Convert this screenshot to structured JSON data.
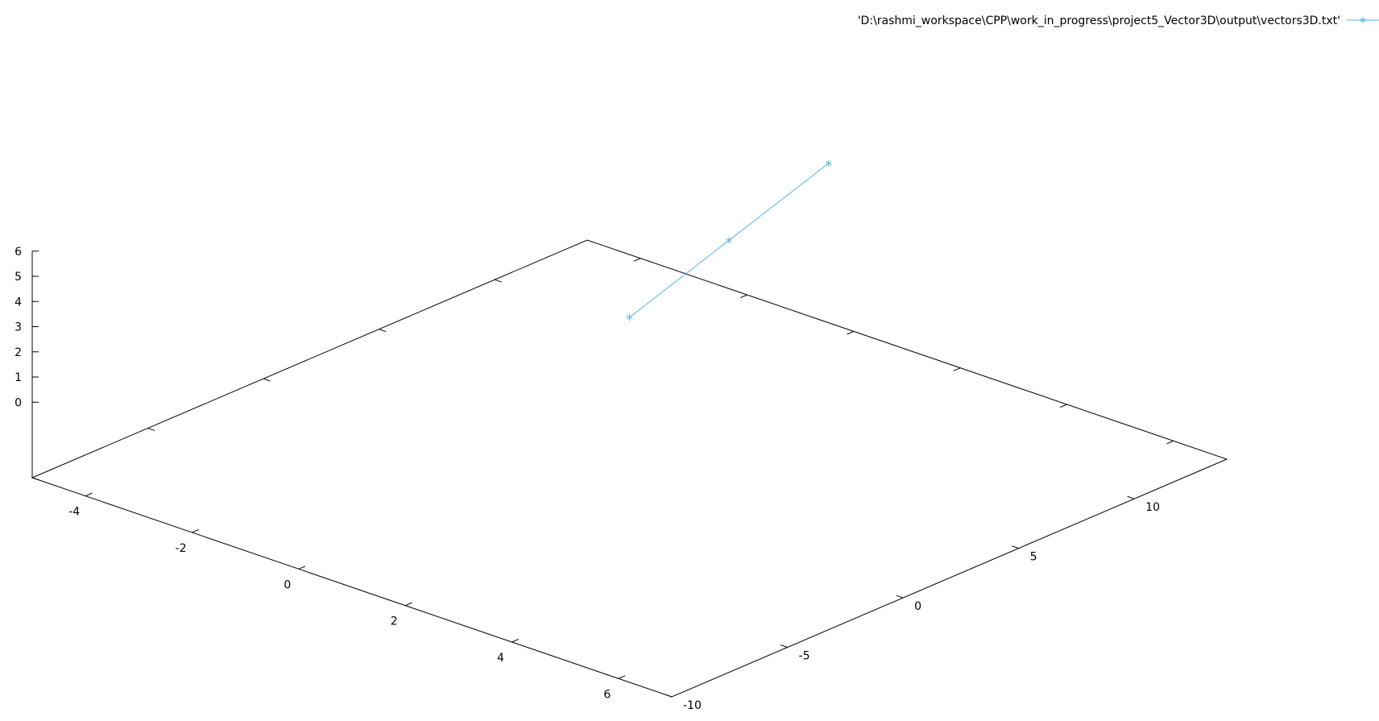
{
  "chart_data": {
    "type": "line",
    "view": "3d",
    "legend": {
      "label": "'D:\\rashmi_workspace\\CPP\\work_in_progress\\project5_Vector3D\\output\\vectors3D.txt'",
      "placement": "top-right"
    },
    "series": [
      {
        "name": "'D:\\rashmi_workspace\\CPP\\work_in_progress\\project5_Vector3D\\output\\vectors3D.txt'",
        "color": "#56b4e9",
        "marker": "asterisk",
        "points": [
          {
            "x": 1,
            "y": 2,
            "z": 3
          },
          {
            "x": 2,
            "y": 4,
            "z": 6
          },
          {
            "x": 3,
            "y": 6,
            "z": 9
          }
        ]
      }
    ],
    "x_axis": {
      "range": [
        -5,
        7
      ],
      "ticks": [
        -4,
        -2,
        0,
        2,
        4,
        6
      ],
      "tick_labels": [
        "-4",
        "-2",
        "0",
        "2",
        "4",
        "6"
      ]
    },
    "y_axis": {
      "range": [
        -10,
        14
      ],
      "ticks": [
        -10,
        -5,
        0,
        5,
        10
      ],
      "tick_labels": [
        "-10",
        "-5",
        "0",
        "5",
        "10"
      ]
    },
    "z_axis": {
      "range": [
        -3,
        6
      ],
      "ticks": [
        0,
        1,
        2,
        3,
        4,
        5,
        6
      ],
      "tick_labels": [
        "0",
        "1",
        "2",
        "3",
        "4",
        "5",
        "6"
      ]
    },
    "grid": false,
    "colors": {
      "axes": "#000000",
      "series": "#56b4e9"
    }
  }
}
